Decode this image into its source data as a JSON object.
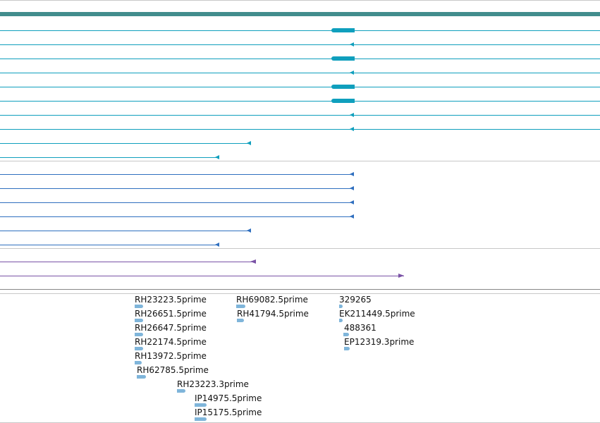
{
  "colors": {
    "band": "#428d8d",
    "teal_track": "#0f9fbd",
    "blue_track": "#2f6fbf",
    "purple_track": "#7a52a6",
    "est": "#7fb5da",
    "divider": "#c8c8c8"
  },
  "est_labels": [
    "RH23223.5prime",
    "RH26651.5prime",
    "RH26647.5prime",
    "RH22174.5prime",
    "RH13972.5prime",
    "RH62785.5prime",
    "RH23223.3prime",
    "IP14975.5prime",
    "IP15175.5prime",
    "RH69082.5prime",
    "RH41794.5prime",
    "329265",
    "EK211449.5prime",
    "488361",
    "EP12319.3prime"
  ]
}
